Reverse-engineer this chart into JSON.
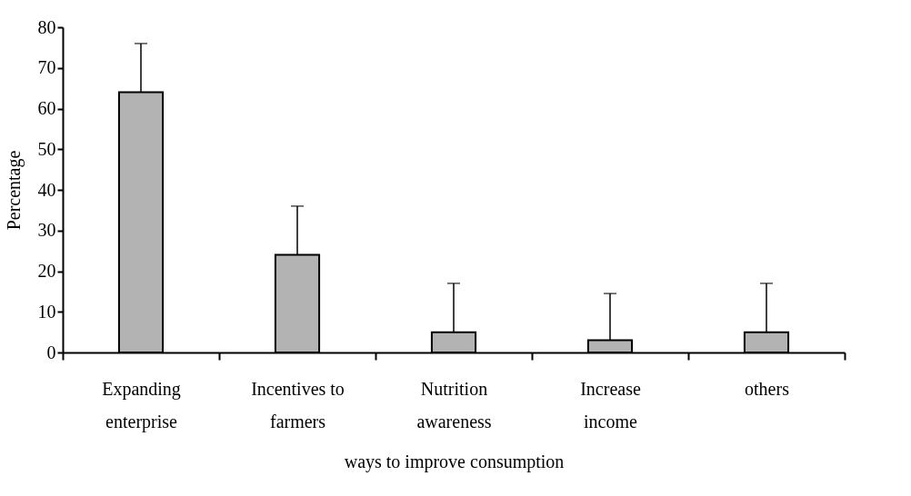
{
  "chart_data": {
    "type": "bar",
    "xlabel": "ways to improve consumption",
    "ylabel": "Percentage",
    "categories": [
      "Expanding enterprise",
      "Incentives to farmers",
      "Nutrition awareness",
      "Increase income",
      "others"
    ],
    "values": [
      64,
      24,
      5,
      3,
      5
    ],
    "errors": [
      [
        64,
        76
      ],
      [
        24,
        36
      ],
      [
        5,
        17
      ],
      [
        3,
        14.5
      ],
      [
        5,
        17
      ]
    ],
    "color": "#b3b3b3",
    "ylim": [
      0,
      80
    ],
    "yticks": [
      0,
      10,
      20,
      30,
      40,
      50,
      60,
      70,
      80
    ],
    "grid": false
  }
}
